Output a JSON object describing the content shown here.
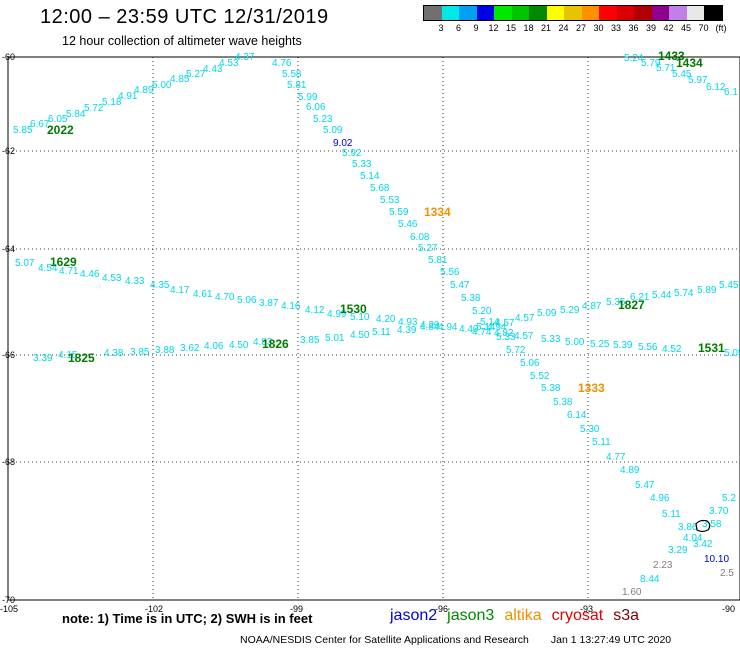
{
  "header": {
    "title": "12:00 – 23:59 UTC 12/31/2019",
    "subtitle": "12 hour collection of altimeter wave heights"
  },
  "legend": {
    "swatches": [
      "#707070",
      "#00e8e8",
      "#00a0f0",
      "#0000e8",
      "#00e800",
      "#00c400",
      "#008800",
      "#ffff00",
      "#e8c400",
      "#ff9000",
      "#ff0000",
      "#d80000",
      "#b00000",
      "#900090",
      "#c080e8",
      "#e8e8e8",
      "#000000"
    ],
    "labels": [
      "3",
      "6",
      "9",
      "12",
      "15",
      "18",
      "21",
      "24",
      "27",
      "30",
      "33",
      "36",
      "39",
      "42",
      "45",
      "70",
      "(ft)"
    ]
  },
  "axes": {
    "lat_labels": [
      "-60",
      "-62",
      "-64",
      "-66",
      "-68",
      "-70"
    ],
    "lon_labels": [
      "-105",
      "-102",
      "-99",
      "-96",
      "-93",
      "-90"
    ]
  },
  "tracks": {
    "cyan": "#00d8e8",
    "blue": "#0000d8",
    "green": "#007a00",
    "orange": "#f09000",
    "gray": "#808080"
  },
  "observations": [
    {
      "t": "5.85",
      "c": "cyan"
    },
    {
      "t": "6.67",
      "c": "cyan"
    },
    {
      "t": "6.05",
      "c": "cyan"
    },
    {
      "t": "5.84",
      "c": "cyan"
    },
    {
      "t": "5.72",
      "c": "cyan"
    },
    {
      "t": "5.18",
      "c": "cyan"
    },
    {
      "t": "4.91",
      "c": "cyan"
    },
    {
      "t": "4.89",
      "c": "cyan"
    },
    {
      "t": "5.00",
      "c": "cyan"
    },
    {
      "t": "4.85",
      "c": "cyan"
    },
    {
      "t": "5.27",
      "c": "cyan"
    },
    {
      "t": "4.43",
      "c": "cyan"
    },
    {
      "t": "4.53",
      "c": "cyan"
    },
    {
      "t": "4.37",
      "c": "cyan"
    },
    {
      "t": "4.76",
      "c": "cyan"
    },
    {
      "t": "5.58",
      "c": "cyan"
    },
    {
      "t": "5.81",
      "c": "cyan"
    },
    {
      "t": "5.99",
      "c": "cyan"
    },
    {
      "t": "6.06",
      "c": "cyan"
    },
    {
      "t": "5.23",
      "c": "cyan"
    },
    {
      "t": "5.09",
      "c": "cyan"
    },
    {
      "t": "9.02",
      "c": "blue"
    },
    {
      "t": "5.92",
      "c": "cyan"
    },
    {
      "t": "5.33",
      "c": "cyan"
    },
    {
      "t": "5.14",
      "c": "cyan"
    },
    {
      "t": "5.68",
      "c": "cyan"
    },
    {
      "t": "5.53",
      "c": "cyan"
    },
    {
      "t": "5.59",
      "c": "cyan"
    },
    {
      "t": "5.46",
      "c": "cyan"
    },
    {
      "t": "6.08",
      "c": "cyan"
    },
    {
      "t": "5.27",
      "c": "cyan"
    },
    {
      "t": "5.81",
      "c": "cyan"
    },
    {
      "t": "5.56",
      "c": "cyan"
    },
    {
      "t": "5.47",
      "c": "cyan"
    },
    {
      "t": "5.38",
      "c": "cyan"
    },
    {
      "t": "5.20",
      "c": "cyan"
    },
    {
      "t": "5.14",
      "c": "cyan"
    },
    {
      "t": "4.94",
      "c": "cyan"
    },
    {
      "t": "4.82",
      "c": "cyan"
    },
    {
      "t": "5.33",
      "c": "cyan"
    },
    {
      "t": "5.72",
      "c": "cyan"
    },
    {
      "t": "5.06",
      "c": "cyan"
    },
    {
      "t": "5.52",
      "c": "cyan"
    },
    {
      "t": "5.38",
      "c": "cyan"
    },
    {
      "t": "5.38",
      "c": "cyan"
    },
    {
      "t": "6.14",
      "c": "cyan"
    },
    {
      "t": "5.30",
      "c": "cyan"
    },
    {
      "t": "5.11",
      "c": "cyan"
    },
    {
      "t": "4.77",
      "c": "cyan"
    },
    {
      "t": "4.89",
      "c": "cyan"
    },
    {
      "t": "5.47",
      "c": "cyan"
    },
    {
      "t": "4.96",
      "c": "cyan"
    },
    {
      "t": "5.11",
      "c": "cyan"
    },
    {
      "t": "3.86",
      "c": "cyan"
    },
    {
      "t": "4.04",
      "c": "cyan"
    },
    {
      "t": "3.42",
      "c": "cyan"
    },
    {
      "t": "3.29",
      "c": "cyan"
    },
    {
      "t": "3.58",
      "c": "cyan"
    },
    {
      "t": "8.44",
      "c": "cyan"
    },
    {
      "t": "5.07",
      "c": "cyan"
    },
    {
      "t": "4.54",
      "c": "cyan"
    },
    {
      "t": "4.71",
      "c": "cyan"
    },
    {
      "t": "4.46",
      "c": "cyan"
    },
    {
      "t": "4.53",
      "c": "cyan"
    },
    {
      "t": "4.33",
      "c": "cyan"
    },
    {
      "t": "4.35",
      "c": "cyan"
    },
    {
      "t": "4.17",
      "c": "cyan"
    },
    {
      "t": "4.61",
      "c": "cyan"
    },
    {
      "t": "4.70",
      "c": "cyan"
    },
    {
      "t": "5.06",
      "c": "cyan"
    },
    {
      "t": "3.87",
      "c": "cyan"
    },
    {
      "t": "4.16",
      "c": "cyan"
    },
    {
      "t": "4.12",
      "c": "cyan"
    },
    {
      "t": "4.99",
      "c": "cyan"
    },
    {
      "t": "5.10",
      "c": "cyan"
    },
    {
      "t": "4.20",
      "c": "cyan"
    },
    {
      "t": "4.93",
      "c": "cyan"
    },
    {
      "t": "4.29",
      "c": "cyan"
    },
    {
      "t": "4.94",
      "c": "cyan"
    },
    {
      "t": "4.40",
      "c": "cyan"
    },
    {
      "t": "5.14",
      "c": "cyan"
    },
    {
      "t": "4.57",
      "c": "cyan"
    },
    {
      "t": "4.57",
      "c": "cyan"
    },
    {
      "t": "5.09",
      "c": "cyan"
    },
    {
      "t": "5.29",
      "c": "cyan"
    },
    {
      "t": "4.87",
      "c": "cyan"
    },
    {
      "t": "5.35",
      "c": "cyan"
    },
    {
      "t": "6.21",
      "c": "cyan"
    },
    {
      "t": "5.44",
      "c": "cyan"
    },
    {
      "t": "5.74",
      "c": "cyan"
    },
    {
      "t": "5.89",
      "c": "cyan"
    },
    {
      "t": "5.45",
      "c": "cyan"
    },
    {
      "t": "3.39",
      "c": "cyan"
    },
    {
      "t": "4.15",
      "c": "cyan"
    },
    {
      "t": "4.38",
      "c": "cyan"
    },
    {
      "t": "3.85",
      "c": "cyan"
    },
    {
      "t": "3.88",
      "c": "cyan"
    },
    {
      "t": "3.62",
      "c": "cyan"
    },
    {
      "t": "4.06",
      "c": "cyan"
    },
    {
      "t": "4.50",
      "c": "cyan"
    },
    {
      "t": "4.83",
      "c": "cyan"
    },
    {
      "t": "3.85",
      "c": "cyan"
    },
    {
      "t": "5.01",
      "c": "cyan"
    },
    {
      "t": "4.50",
      "c": "cyan"
    },
    {
      "t": "5.11",
      "c": "cyan"
    },
    {
      "t": "4.39",
      "c": "cyan"
    },
    {
      "t": "4.84",
      "c": "cyan"
    },
    {
      "t": "4.74",
      "c": "cyan"
    },
    {
      "t": "4.57",
      "c": "cyan"
    },
    {
      "t": "5.33",
      "c": "cyan"
    },
    {
      "t": "5.00",
      "c": "cyan"
    },
    {
      "t": "5.25",
      "c": "cyan"
    },
    {
      "t": "5.39",
      "c": "cyan"
    },
    {
      "t": "5.56",
      "c": "cyan"
    },
    {
      "t": "4.52",
      "c": "cyan"
    },
    {
      "t": "5.05",
      "c": "cyan"
    },
    {
      "t": "5.24",
      "c": "cyan"
    },
    {
      "t": "5.79",
      "c": "cyan"
    },
    {
      "t": "5.71",
      "c": "cyan"
    },
    {
      "t": "5.45",
      "c": "cyan"
    },
    {
      "t": "5.97",
      "c": "cyan"
    },
    {
      "t": "6.12",
      "c": "cyan"
    },
    {
      "t": "6.1",
      "c": "cyan"
    },
    {
      "t": "5.2",
      "c": "cyan"
    },
    {
      "t": "3.70",
      "c": "cyan"
    },
    {
      "t": "10.10",
      "c": "blue"
    },
    {
      "t": "2.23",
      "c": "gray"
    },
    {
      "t": "2.5",
      "c": "gray"
    },
    {
      "t": "1.60",
      "c": "gray"
    },
    {
      "t": "2022",
      "c": "green",
      "time": true
    },
    {
      "t": "1629",
      "c": "green",
      "time": true
    },
    {
      "t": "1825",
      "c": "green",
      "time": true
    },
    {
      "t": "1826",
      "c": "green",
      "time": true
    },
    {
      "t": "1530",
      "c": "green",
      "time": true
    },
    {
      "t": "1827",
      "c": "green",
      "time": true
    },
    {
      "t": "1531",
      "c": "green",
      "time": true
    },
    {
      "t": "1433",
      "c": "green",
      "time": true
    },
    {
      "t": "1434",
      "c": "green",
      "time": true
    },
    {
      "t": "1334",
      "c": "orange",
      "time": true
    },
    {
      "t": "1333",
      "c": "orange",
      "time": true
    }
  ],
  "footer": {
    "note": "note: 1) Time is in UTC; 2) SWH is in feet",
    "satellites": [
      {
        "name": "jason2",
        "color": "#0000e0"
      },
      {
        "name": "jason3",
        "color": "#008800"
      },
      {
        "name": "altika",
        "color": "#f09000"
      },
      {
        "name": "cryosat",
        "color": "#e00000"
      },
      {
        "name": "s3a",
        "color": "#800000"
      }
    ],
    "credit": "NOAA/NESDIS Center for Satellite Applications and Research",
    "timestamp": "Jan  1 13:27:49 UTC 2020"
  }
}
